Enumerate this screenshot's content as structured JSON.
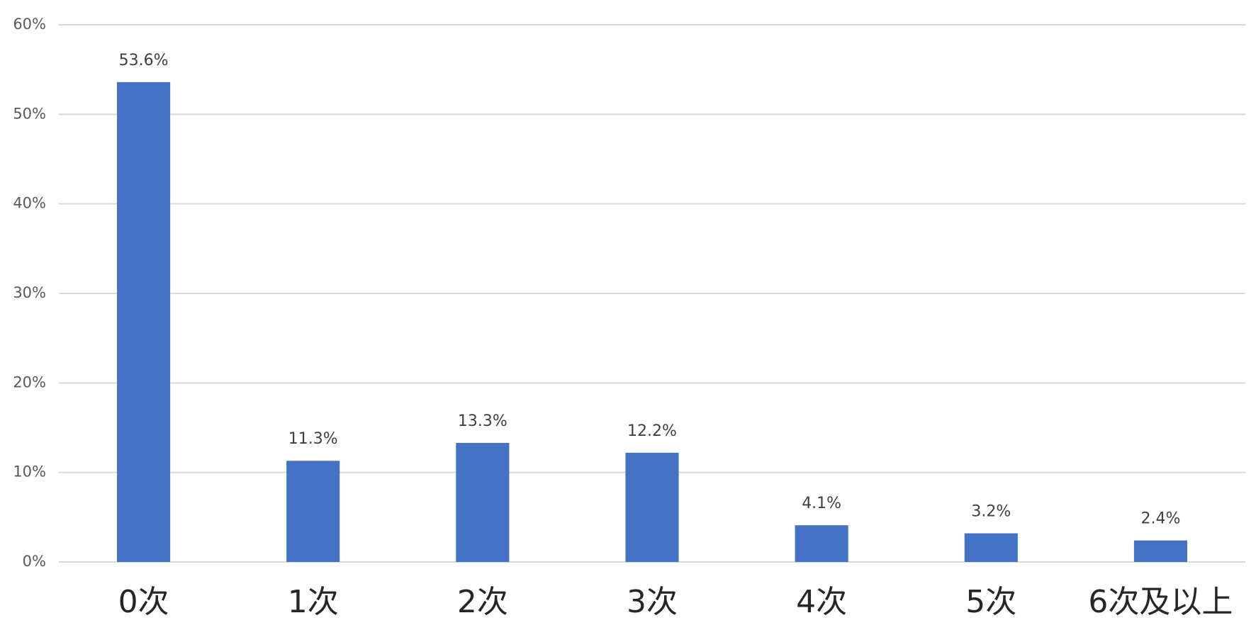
{
  "chart_data": {
    "type": "bar",
    "categories": [
      "0次",
      "1次",
      "2次",
      "3次",
      "4次",
      "5次",
      "6次及以上"
    ],
    "values": [
      53.6,
      11.3,
      13.3,
      12.2,
      4.1,
      3.2,
      2.4
    ],
    "value_labels": [
      "53.6%",
      "11.3%",
      "13.3%",
      "12.2%",
      "4.1%",
      "3.2%",
      "2.4%"
    ],
    "color": "#4472c4",
    "ylim": [
      0,
      60
    ],
    "yticks": [
      {
        "value": 0,
        "label": "0%"
      },
      {
        "value": 10,
        "label": "10%"
      },
      {
        "value": 20,
        "label": "20%"
      },
      {
        "value": 30,
        "label": "30%"
      },
      {
        "value": 40,
        "label": "40%"
      },
      {
        "value": 50,
        "label": "50%"
      },
      {
        "value": 60,
        "label": "60%"
      }
    ],
    "grid": true
  }
}
